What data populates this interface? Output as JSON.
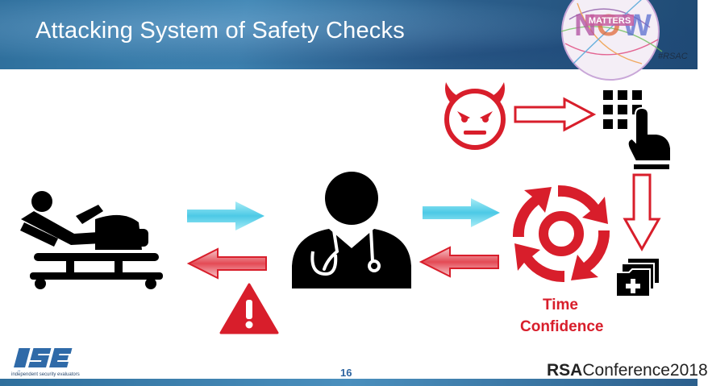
{
  "slide": {
    "title": "Attacking System of Safety Checks",
    "page_number": "16"
  },
  "badge": {
    "word": "MATTERS",
    "hashtag": "#RSAC"
  },
  "labels": {
    "line1": "Time",
    "line2": "Confidence"
  },
  "footer": {
    "logo_text": "ISE",
    "logo_subtitle": "independent security evaluators",
    "conference_brand": "RSA",
    "conference_rest": "Conference2018"
  },
  "colors": {
    "accent_red": "#d81e2b",
    "arrow_cyan": "#5fd0e8",
    "header_blue": "#2f6f9c"
  },
  "icons": [
    "patient-bed-icon",
    "doctor-icon",
    "devil-icon",
    "keypad-hand-icon",
    "sync-cycle-icon",
    "medical-records-icon",
    "warning-icon"
  ]
}
